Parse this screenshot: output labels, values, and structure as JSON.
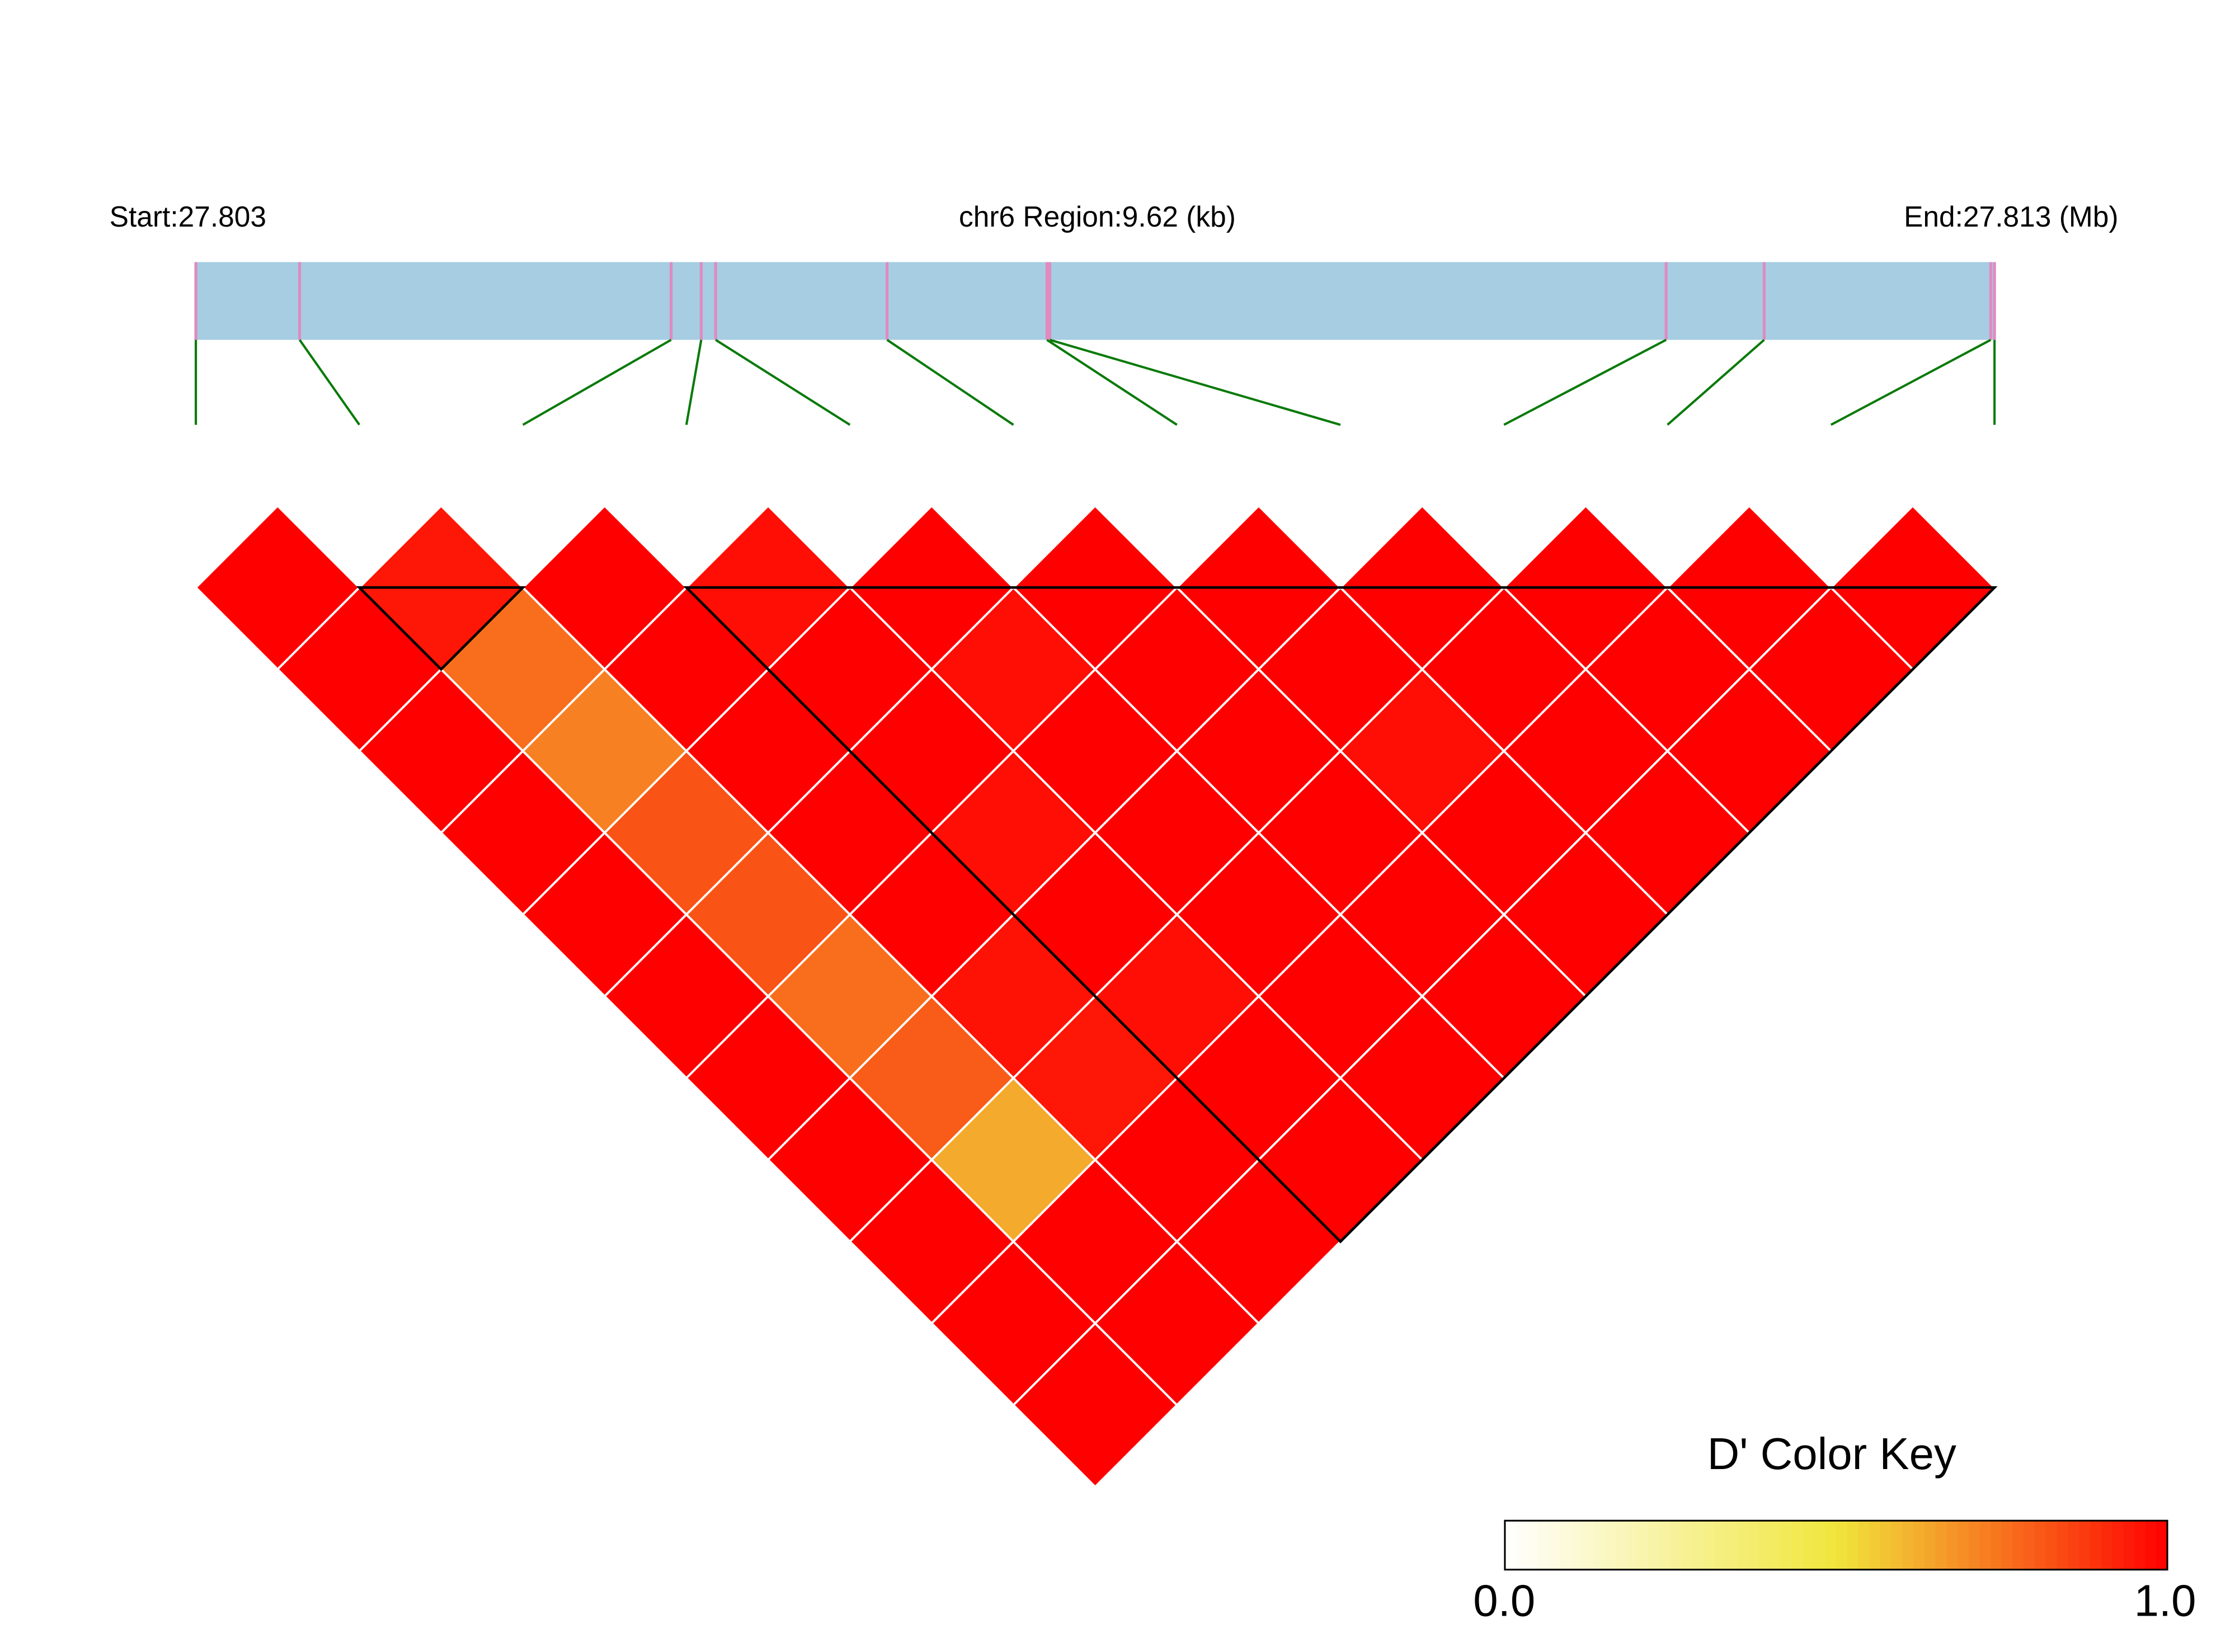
{
  "chart_data": {
    "type": "ld_heatmap",
    "start_label": "Start:27.803",
    "region_label": "chr6 Region:9.62 (kb)",
    "end_label": "End:27.813 (Mb)",
    "positions": [
      0,
      0.555,
      2.542,
      2.703,
      2.78,
      3.697,
      4.552,
      4.567,
      7.864,
      8.388,
      9.6,
      9.62
    ],
    "xlim": [
      0,
      9.62
    ],
    "dprime": [
      [
        1,
        1,
        1,
        1,
        1,
        1,
        1,
        1,
        1,
        1,
        1
      ],
      [
        0.95,
        0.76,
        0.72,
        0.82,
        0.82,
        0.76,
        0.8,
        0.63,
        1,
        1
      ],
      [
        1,
        1,
        1,
        1,
        1,
        0.96,
        0.95,
        1,
        1
      ],
      [
        0.97,
        1,
        1,
        0.97,
        1,
        0.97,
        1,
        1
      ],
      [
        1,
        0.97,
        1,
        1,
        1,
        1,
        1
      ],
      [
        1,
        1,
        1,
        1,
        1,
        1
      ],
      [
        1,
        1,
        0.97,
        1,
        1
      ],
      [
        1,
        1,
        1,
        1
      ],
      [
        1,
        1,
        1
      ],
      [
        1,
        1
      ],
      [
        1
      ]
    ],
    "blocks": [
      [
        1,
        2
      ],
      [
        3,
        11
      ]
    ],
    "key_title": "D' Color Key",
    "key_ticks": [
      {
        "value": 0,
        "label": "0.0"
      },
      {
        "value": 1,
        "label": "1.0"
      }
    ],
    "key_range": [
      0,
      1
    ],
    "bar_color": "#a6cde2",
    "snp_tick_color": "#e08ac0",
    "link_color": "#0a7a0a"
  }
}
